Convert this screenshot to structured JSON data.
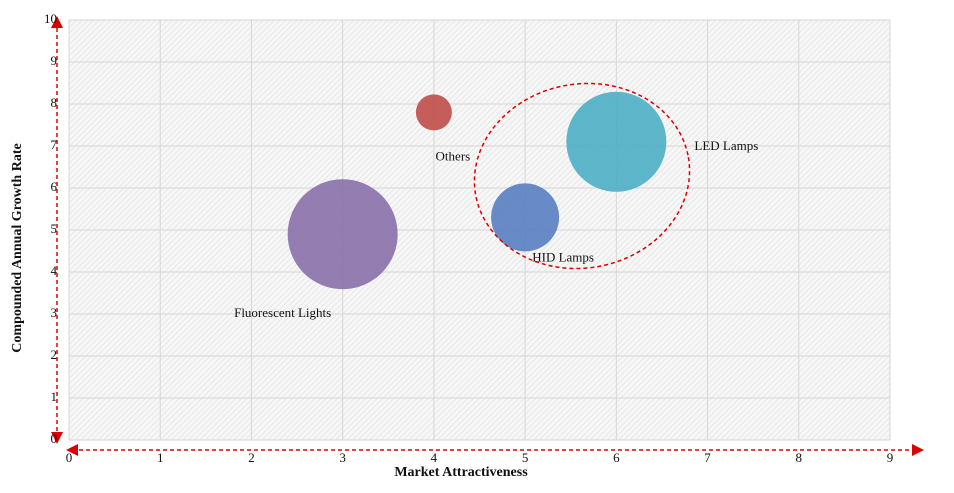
{
  "chart_data": {
    "type": "bubble",
    "x_label": "Market Attractiveness",
    "y_label": "Compounded  Annual  Growth Rate",
    "labels": [
      "Fluorescent Lights",
      "Others",
      "HID Lamps",
      "LED Lamps"
    ],
    "x": [
      3,
      4,
      5,
      6
    ],
    "y": [
      4.9,
      7.8,
      5.3,
      7.1
    ],
    "sizes": [
      55,
      18,
      34,
      50
    ],
    "colors": [
      "#8a72aa",
      "#c0504d",
      "#5b80c2",
      "#4fb0c6"
    ],
    "xlim": [
      0,
      9
    ],
    "ylim": [
      0,
      10
    ],
    "xticks": [
      0,
      1,
      2,
      3,
      4,
      5,
      6,
      7,
      8,
      9
    ],
    "yticks": [
      0,
      1,
      2,
      3,
      4,
      5,
      6,
      7,
      8,
      9,
      10
    ],
    "grid": true
  }
}
